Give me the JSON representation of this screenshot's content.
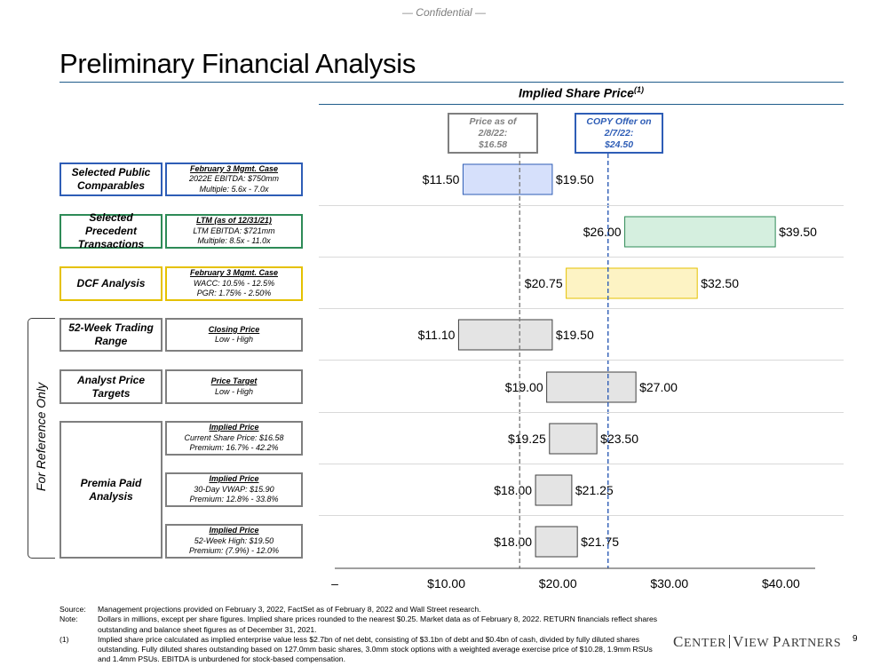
{
  "header": {
    "confidential": "— Confidential —",
    "title": "Preliminary Financial Analysis",
    "section": "Implied Share Price",
    "section_note": "(1)"
  },
  "reference_lines": {
    "current": {
      "line1": "Price as of",
      "line2": "2/8/22:",
      "line3": "$16.58",
      "value": 16.58,
      "color": "#7f7f7f"
    },
    "offer": {
      "line1": "COPY Offer on",
      "line2": "2/7/22:",
      "line3": "$24.50",
      "value": 24.5,
      "color": "#2e5db6"
    }
  },
  "side_label": "For Reference Only",
  "rows": [
    {
      "method": "Selected Public Comparables",
      "basis_head": "February 3 Mgmt. Case",
      "basis_l1": "2022E EBITDA: $750mm",
      "basis_l2": "Multiple: 5.6x - 7.0x",
      "color": "#2e5db6"
    },
    {
      "method": "Selected Precedent Transactions",
      "basis_head": "LTM (as of 12/31/21)",
      "basis_l1": "LTM EBITDA: $721mm",
      "basis_l2": "Multiple: 8.5x - 11.0x",
      "color": "#2e8b57"
    },
    {
      "method": "DCF Analysis",
      "basis_head": "February 3 Mgmt. Case",
      "basis_l1": "WACC: 10.5% - 12.5%",
      "basis_l2": "PGR: 1.75% - 2.50%",
      "color": "#e5c100"
    },
    {
      "method": "52-Week Trading Range",
      "basis_head": "Closing Price",
      "basis_l1": "Low - High",
      "basis_l2": "",
      "color": "#7f7f7f"
    },
    {
      "method": "Analyst Price Targets",
      "basis_head": "Price Target",
      "basis_l1": "Low - High",
      "basis_l2": "",
      "color": "#7f7f7f"
    },
    {
      "method": "Premia Paid Analysis",
      "basis_head": "Implied Price",
      "basis_l1": "Current Share Price: $16.58",
      "basis_l2": "Premium: 16.7% - 42.2%",
      "color": "#7f7f7f"
    },
    {
      "method": "",
      "basis_head": "Implied Price",
      "basis_l1": "30-Day VWAP: $15.90",
      "basis_l2": "Premium: 12.8% - 33.8%",
      "color": "#7f7f7f"
    },
    {
      "method": "",
      "basis_head": "Implied Price",
      "basis_l1": "52-Week High: $19.50",
      "basis_l2": "Premium: (7.9%) - 12.0%",
      "color": "#7f7f7f"
    }
  ],
  "chart_data": {
    "type": "bar",
    "orientation": "horizontal-floating",
    "title": "Implied Share Price",
    "xlim": [
      0,
      43
    ],
    "x_ticks": [
      0,
      10,
      20,
      30,
      40
    ],
    "x_tick_labels": [
      "–",
      "$10.00",
      "$20.00",
      "$30.00",
      "$40.00"
    ],
    "categories": [
      "Selected Public Comparables",
      "Selected Precedent Transactions",
      "DCF Analysis",
      "52-Week Trading Range",
      "Analyst Price Targets",
      "Premia Paid Analysis - Current Share Price",
      "Premia Paid Analysis - 30-Day VWAP",
      "Premia Paid Analysis - 52-Week High"
    ],
    "series": [
      {
        "name": "Low",
        "values": [
          11.5,
          26.0,
          20.75,
          11.1,
          19.0,
          19.25,
          18.0,
          18.0
        ],
        "labels": [
          "$11.50",
          "$26.00",
          "$20.75",
          "$11.10",
          "$19.00",
          "$19.25",
          "$18.00",
          "$18.00"
        ]
      },
      {
        "name": "High",
        "values": [
          19.5,
          39.5,
          32.5,
          19.5,
          27.0,
          23.5,
          21.25,
          21.75
        ],
        "labels": [
          "$19.50",
          "$39.50",
          "$32.50",
          "$19.50",
          "$27.00",
          "$23.50",
          "$21.25",
          "$21.75"
        ]
      }
    ],
    "bar_fill": [
      "#d6e0fb",
      "#d5efdf",
      "#fdf3c4",
      "#e4e4e4",
      "#e4e4e4",
      "#e4e4e4",
      "#e4e4e4",
      "#e4e4e4"
    ],
    "bar_stroke": [
      "#2e5db6",
      "#2e8b57",
      "#e5c100",
      "#404040",
      "#404040",
      "#404040",
      "#404040",
      "#404040"
    ],
    "reference_lines": [
      {
        "label": "Price as of 2/8/22: $16.58",
        "value": 16.58,
        "style": "dashed",
        "color": "#7f7f7f"
      },
      {
        "label": "COPY Offer on 2/7/22: $24.50",
        "value": 24.5,
        "style": "dashed",
        "color": "#2e5db6"
      }
    ],
    "grid": false
  },
  "footnotes": [
    {
      "tag": "Source:",
      "text": "Management projections provided on February 3, 2022, FactSet as of February 8, 2022 and Wall Street research."
    },
    {
      "tag": "Note:",
      "text": "Dollars in millions, except per share figures. Implied share prices rounded to the nearest $0.25. Market data as of February 8, 2022. RETURN financials reflect shares outstanding and balance sheet figures as of December 31, 2021."
    },
    {
      "tag": "(1)",
      "text": "Implied share price calculated as implied enterprise value less $2.7bn of net debt, consisting of $3.1bn of debt and $0.4bn of cash, divided by fully diluted shares outstanding. Fully diluted shares outstanding based on 127.0mm basic shares, 3.0mm stock options with a weighted average exercise price of $10.28, 1.9mm RSUs and 1.4mm PSUs. EBITDA is unburdened for stock-based compensation."
    }
  ],
  "logo": {
    "c": "C",
    "enter": "ENTER",
    "v": "V",
    "iew": "IEW",
    "p": "P",
    "artners": "ARTNERS"
  },
  "page_number": "9"
}
